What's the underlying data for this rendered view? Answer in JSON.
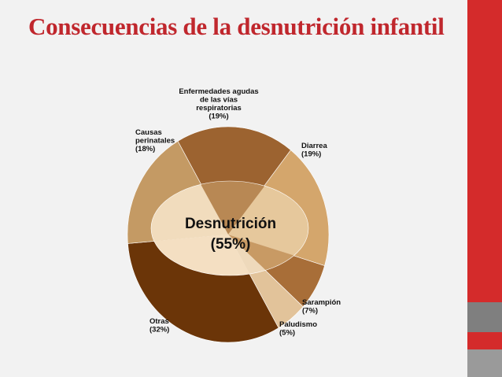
{
  "slide": {
    "title": "Consecuencias de la desnutrición infantil"
  },
  "colors": {
    "title": "#c0272d",
    "sidebar": "#d42b2b",
    "sidebar_block": "#7f7f7f",
    "background": "#f2f2f2"
  },
  "chart_data": {
    "type": "pie",
    "center_label": "Desnutrición",
    "center_value": "(55%)",
    "center_percent": 55,
    "slices": [
      {
        "label": [
          "Enfermedades agudas",
          "de las vías",
          "respiratorias"
        ],
        "pct_text": "(19%)",
        "value": 19,
        "color": "#9c6330",
        "inner_color": "#b88854"
      },
      {
        "label": [
          "Diarrea"
        ],
        "pct_text": "(19%)",
        "value": 19,
        "color": "#d4a66c",
        "inner_color": "#e6c89c"
      },
      {
        "label": [
          "Sarampión"
        ],
        "pct_text": "(7%)",
        "value": 7,
        "color": "#a86e38",
        "inner_color": "#c89a64"
      },
      {
        "label": [
          "Paludismo"
        ],
        "pct_text": "(5%)",
        "value": 5,
        "color": "#e2c39a",
        "inner_color": "#eed9bb"
      },
      {
        "label": [
          "Otras"
        ],
        "pct_text": "(32%)",
        "value": 32,
        "color": "#6b3508",
        "inner_color": "#f4dfc2"
      },
      {
        "label": [
          "Causas",
          "perinatales"
        ],
        "pct_text": "(18%)",
        "value": 18,
        "color": "#c49a64",
        "inner_color": "#f1dcbd"
      }
    ]
  }
}
